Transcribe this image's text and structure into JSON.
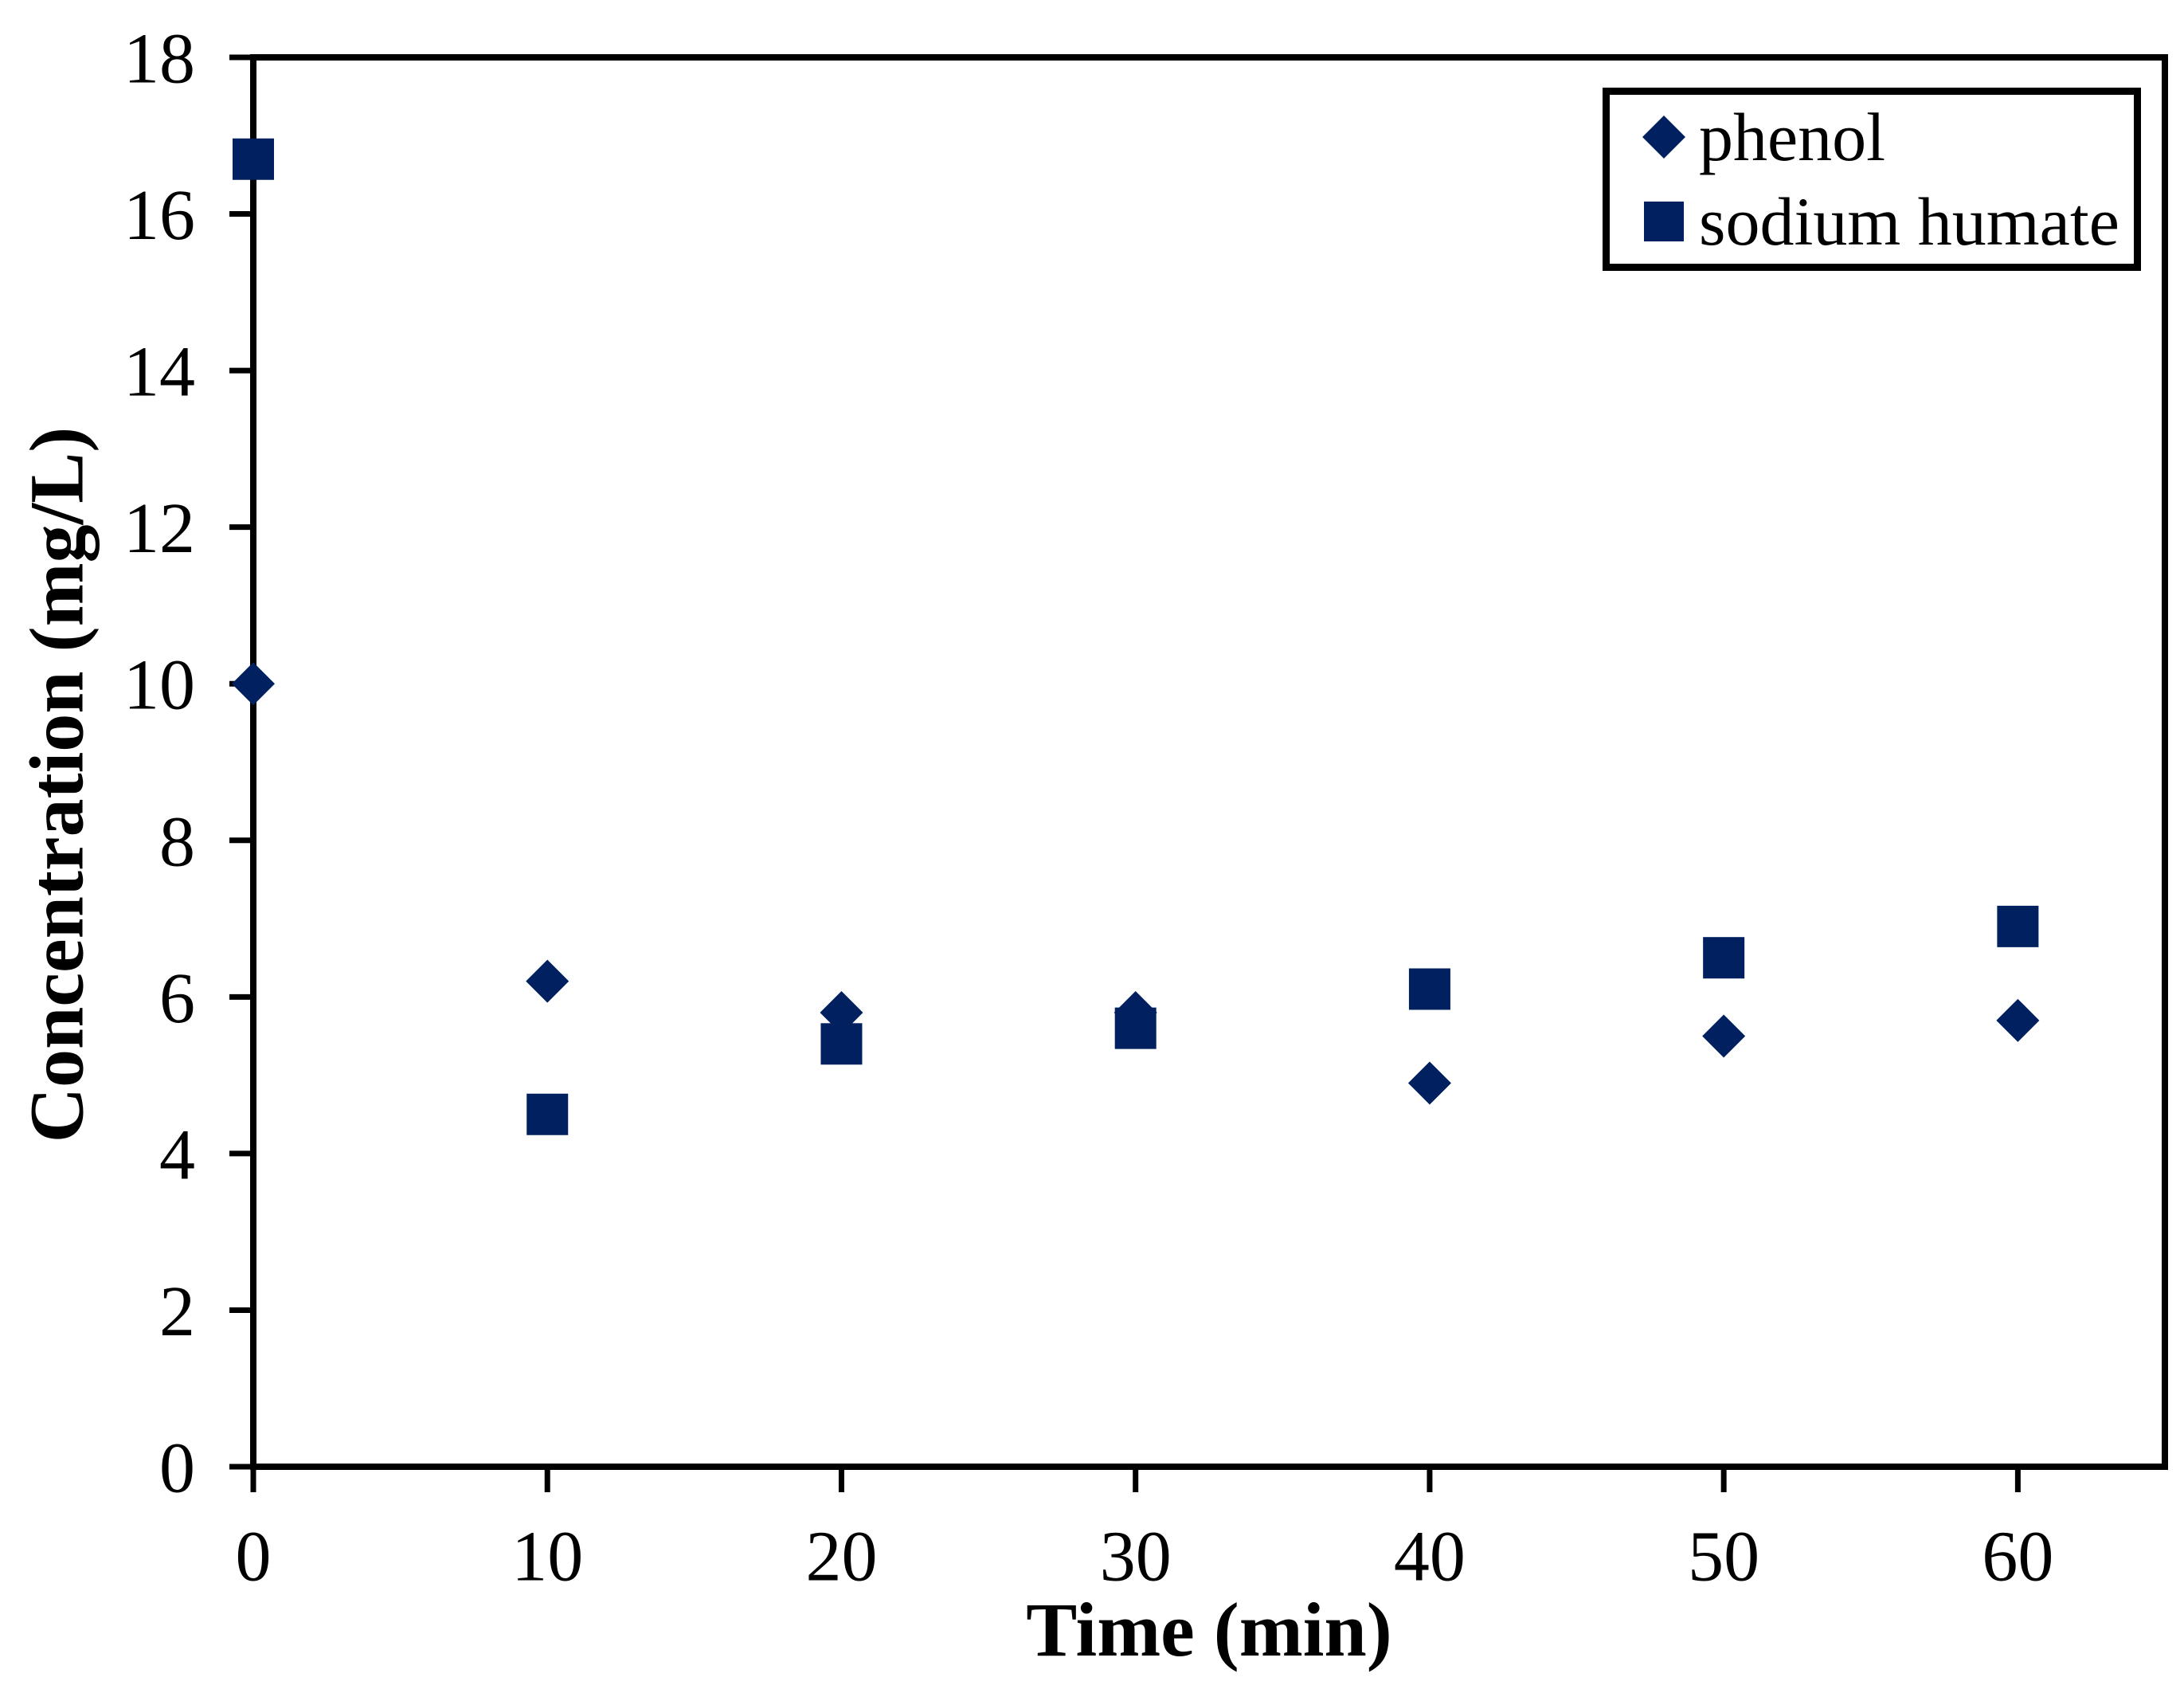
{
  "figure": {
    "background_color": "#ffffff",
    "axis_color": "#000000",
    "marker_color": "#002060"
  },
  "chart_data": {
    "type": "scatter",
    "x": [
      0,
      10,
      20,
      30,
      40,
      50,
      60
    ],
    "series": [
      {
        "name": "phenol",
        "marker": "diamond",
        "color": "#002060",
        "values": [
          10.0,
          6.2,
          5.8,
          5.8,
          4.9,
          5.5,
          5.7
        ]
      },
      {
        "name": "sodium humate",
        "marker": "square",
        "color": "#002060",
        "values": [
          16.7,
          4.5,
          5.4,
          5.6,
          6.1,
          6.5,
          6.9
        ]
      }
    ],
    "title": "",
    "xlabel": "Time (min)",
    "ylabel": "Concentration (mg/L)",
    "xlim": [
      0,
      65
    ],
    "ylim": [
      0,
      18
    ],
    "x_ticks": [
      0,
      10,
      20,
      30,
      40,
      50,
      60
    ],
    "y_ticks": [
      0,
      2,
      4,
      6,
      8,
      10,
      12,
      14,
      16,
      18
    ],
    "grid": false,
    "legend_position": "top-right-inside",
    "plot_border": "full-box"
  }
}
